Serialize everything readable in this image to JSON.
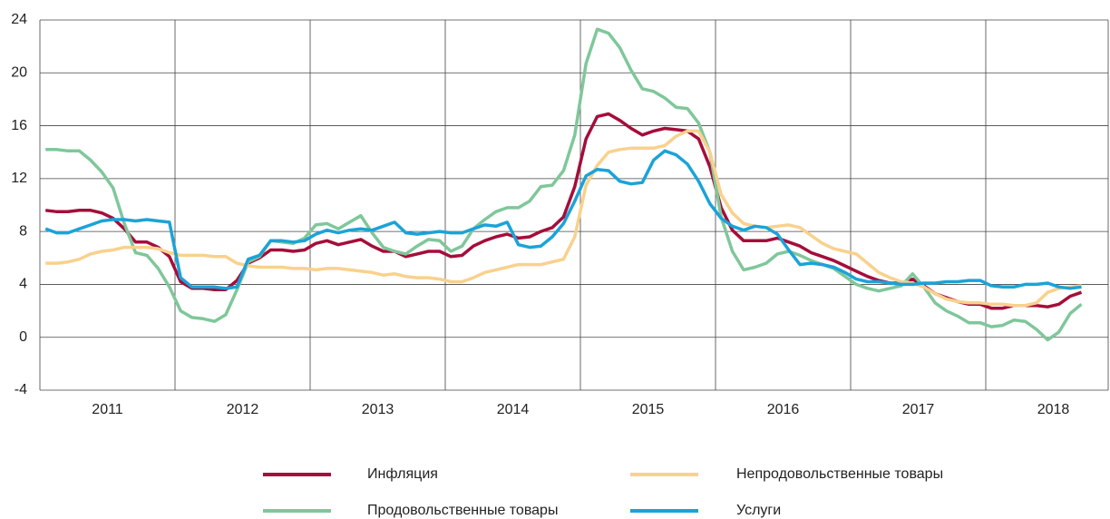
{
  "chart_data": {
    "type": "line",
    "categories": [
      null,
      null,
      null,
      null,
      null,
      null,
      "2011",
      null,
      null,
      null,
      null,
      null,
      null,
      null,
      null,
      null,
      null,
      null,
      "2012",
      null,
      null,
      null,
      null,
      null,
      null,
      null,
      null,
      null,
      null,
      null,
      "2013",
      null,
      null,
      null,
      null,
      null,
      null,
      null,
      null,
      null,
      null,
      null,
      "2014",
      null,
      null,
      null,
      null,
      null,
      null,
      null,
      null,
      null,
      null,
      null,
      "2015",
      null,
      null,
      null,
      null,
      null,
      null,
      null,
      null,
      null,
      null,
      null,
      "2016",
      null,
      null,
      null,
      null,
      null,
      null,
      null,
      null,
      null,
      null,
      null,
      "2017",
      null,
      null,
      null,
      null,
      null,
      null,
      null,
      null,
      null,
      null,
      null,
      "2018",
      null,
      null
    ],
    "series": [
      {
        "name": "Инфляция",
        "color": "#a50d3a",
        "values": [
          9.6,
          9.5,
          9.5,
          9.6,
          9.6,
          9.4,
          9.0,
          8.2,
          7.2,
          7.2,
          6.8,
          6.1,
          4.2,
          3.7,
          3.7,
          3.6,
          3.6,
          4.3,
          5.6,
          6.0,
          6.6,
          6.6,
          6.5,
          6.6,
          7.1,
          7.3,
          7.0,
          7.2,
          7.4,
          6.9,
          6.5,
          6.5,
          6.1,
          6.3,
          6.5,
          6.5,
          6.1,
          6.2,
          6.9,
          7.3,
          7.6,
          7.8,
          7.5,
          7.6,
          8.0,
          8.3,
          9.1,
          11.4,
          15.0,
          16.7,
          16.9,
          16.4,
          15.8,
          15.3,
          15.6,
          15.8,
          15.7,
          15.6,
          15.0,
          12.9,
          9.8,
          8.1,
          7.3,
          7.3,
          7.3,
          7.5,
          7.2,
          6.9,
          6.4,
          6.1,
          5.8,
          5.4,
          5.0,
          4.6,
          4.3,
          4.1,
          4.1,
          4.4,
          3.9,
          3.3,
          3.0,
          2.7,
          2.5,
          2.5,
          2.2,
          2.2,
          2.4,
          2.4,
          2.4,
          2.3,
          2.5,
          3.1,
          3.4
        ]
      },
      {
        "name": "Продовольственные товары",
        "color": "#7fc79a",
        "values": [
          14.2,
          14.2,
          14.1,
          14.1,
          13.4,
          12.5,
          11.3,
          8.6,
          6.4,
          6.2,
          5.2,
          3.8,
          2.0,
          1.5,
          1.4,
          1.2,
          1.7,
          3.6,
          5.7,
          6.1,
          7.3,
          7.2,
          7.1,
          7.5,
          8.5,
          8.6,
          8.2,
          8.7,
          9.2,
          7.9,
          6.8,
          6.5,
          6.3,
          6.9,
          7.4,
          7.3,
          6.5,
          6.9,
          8.2,
          8.9,
          9.5,
          9.8,
          9.8,
          10.3,
          11.4,
          11.5,
          12.6,
          15.3,
          20.7,
          23.3,
          23.0,
          21.9,
          20.2,
          18.8,
          18.6,
          18.1,
          17.4,
          17.3,
          16.2,
          14.0,
          9.1,
          6.5,
          5.1,
          5.3,
          5.6,
          6.3,
          6.5,
          6.2,
          5.8,
          5.5,
          5.2,
          4.6,
          4.0,
          3.7,
          3.5,
          3.7,
          3.9,
          4.8,
          3.8,
          2.6,
          2.0,
          1.6,
          1.1,
          1.1,
          0.8,
          0.9,
          1.3,
          1.2,
          0.6,
          -0.2,
          0.4,
          1.8,
          2.5
        ]
      },
      {
        "name": "Непродовольственные товары",
        "color": "#f9d18d",
        "values": [
          5.6,
          5.6,
          5.7,
          5.9,
          6.3,
          6.5,
          6.6,
          6.8,
          6.8,
          6.8,
          6.7,
          6.4,
          6.2,
          6.2,
          6.2,
          6.1,
          6.1,
          5.6,
          5.4,
          5.3,
          5.3,
          5.3,
          5.2,
          5.2,
          5.1,
          5.2,
          5.2,
          5.1,
          5.0,
          4.9,
          4.7,
          4.8,
          4.6,
          4.5,
          4.5,
          4.4,
          4.2,
          4.2,
          4.5,
          4.9,
          5.1,
          5.3,
          5.5,
          5.5,
          5.5,
          5.7,
          5.9,
          7.6,
          11.5,
          13.0,
          14.0,
          14.2,
          14.3,
          14.3,
          14.3,
          14.5,
          15.2,
          15.6,
          15.6,
          14.0,
          10.8,
          9.4,
          8.6,
          8.4,
          8.3,
          8.4,
          8.5,
          8.3,
          7.7,
          7.1,
          6.7,
          6.5,
          6.3,
          5.6,
          4.9,
          4.5,
          4.2,
          4.1,
          3.8,
          3.3,
          2.9,
          2.7,
          2.6,
          2.6,
          2.5,
          2.5,
          2.4,
          2.4,
          2.6,
          3.4,
          3.7,
          3.8,
          3.9
        ]
      },
      {
        "name": "Услуги",
        "color": "#1ba3d8",
        "values": [
          8.2,
          7.9,
          7.9,
          8.2,
          8.5,
          8.8,
          8.9,
          8.9,
          8.8,
          8.9,
          8.8,
          8.7,
          4.5,
          3.8,
          3.8,
          3.8,
          3.7,
          3.8,
          5.9,
          6.2,
          7.3,
          7.3,
          7.2,
          7.3,
          7.8,
          8.1,
          7.9,
          8.1,
          8.2,
          8.1,
          8.4,
          8.7,
          7.9,
          7.8,
          7.9,
          8.0,
          7.9,
          7.9,
          8.2,
          8.5,
          8.4,
          8.7,
          7.0,
          6.8,
          6.9,
          7.6,
          8.6,
          10.3,
          12.2,
          12.7,
          12.6,
          11.8,
          11.6,
          11.7,
          13.4,
          14.1,
          13.8,
          13.1,
          11.8,
          10.1,
          9.0,
          8.4,
          8.1,
          8.4,
          8.3,
          7.8,
          6.6,
          5.5,
          5.6,
          5.5,
          5.3,
          4.9,
          4.4,
          4.2,
          4.2,
          4.1,
          4.0,
          4.0,
          4.1,
          4.1,
          4.2,
          4.2,
          4.3,
          4.3,
          3.9,
          3.8,
          3.8,
          4.0,
          4.0,
          4.1,
          3.8,
          3.7,
          3.8
        ]
      }
    ],
    "ylim": [
      -4,
      24
    ],
    "yticks": [
      -4,
      0,
      4,
      8,
      12,
      16,
      20,
      24
    ],
    "grid": true
  }
}
